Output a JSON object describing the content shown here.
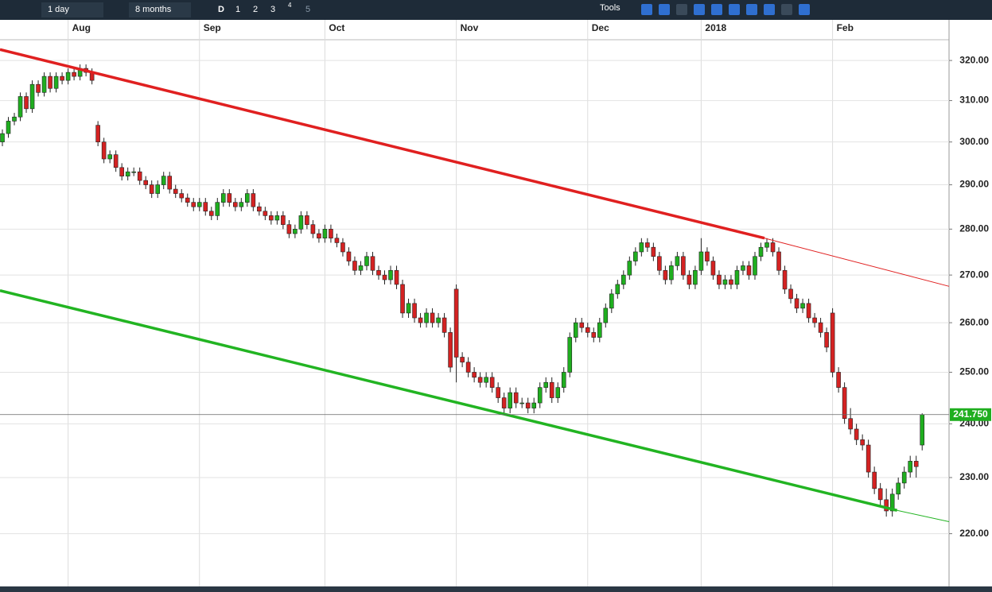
{
  "toolbar": {
    "interval": "1 day",
    "range": "8 months",
    "buttons": [
      "D",
      "1",
      "2",
      "3",
      "4",
      "5"
    ],
    "tools": "Tools"
  },
  "chart_data": {
    "type": "candlestick",
    "log_scale": true,
    "grid": true,
    "up_color": "#1fae1f",
    "down_color": "#d42222",
    "xlim": [
      -0.4,
      158.5
    ],
    "ylim": [
      211,
      325.3
    ],
    "xticks": [
      {
        "value": 11,
        "label": "Aug"
      },
      {
        "value": 33,
        "label": "Sep"
      },
      {
        "value": 54,
        "label": "Oct"
      },
      {
        "value": 76,
        "label": "Nov"
      },
      {
        "value": 98,
        "label": "Dec"
      },
      {
        "value": 117,
        "label": "2018"
      },
      {
        "value": 139,
        "label": "Feb"
      }
    ],
    "yticks": [
      {
        "value": 320,
        "label": "320.00"
      },
      {
        "value": 310,
        "label": "310.00"
      },
      {
        "value": 300,
        "label": "300.00"
      },
      {
        "value": 290,
        "label": "290.00"
      },
      {
        "value": 280,
        "label": "280.00"
      },
      {
        "value": 270,
        "label": "270.00"
      },
      {
        "value": 260,
        "label": "260.00"
      },
      {
        "value": 250,
        "label": "250.00"
      },
      {
        "value": 240,
        "label": "240.00"
      },
      {
        "value": 230,
        "label": "230.00"
      },
      {
        "value": 220,
        "label": "220.00"
      }
    ],
    "last_price": {
      "value": 241.75,
      "label": "241.750",
      "color": "#1fae1f"
    },
    "trendlines": [
      {
        "color": "#e02020",
        "x": [
          -0.4,
          127.6,
          158.5
        ],
        "y": [
          322.8,
          278.0,
          267.6
        ]
      },
      {
        "color": "#22b422",
        "x": [
          -0.4,
          149.8,
          158.5
        ],
        "y": [
          266.7,
          224.1,
          222.1
        ]
      }
    ],
    "candles": [
      [
        300,
        303,
        299,
        302
      ],
      [
        302,
        306,
        301,
        305
      ],
      [
        305,
        307,
        304,
        306
      ],
      [
        306,
        312,
        305,
        311
      ],
      [
        311,
        312,
        307,
        308
      ],
      [
        308,
        315,
        307,
        314
      ],
      [
        314,
        315,
        311,
        312
      ],
      [
        312,
        317,
        311,
        316
      ],
      [
        316,
        317,
        312,
        313
      ],
      [
        313,
        317,
        312,
        316
      ],
      [
        316,
        317,
        314,
        315
      ],
      [
        315,
        318,
        314,
        317
      ],
      [
        317,
        318,
        315,
        316
      ],
      [
        316,
        319,
        315,
        318
      ],
      [
        318,
        319,
        316,
        317
      ],
      [
        317,
        318,
        314,
        315
      ],
      [
        304,
        305,
        299,
        300
      ],
      [
        300,
        301,
        295,
        296
      ],
      [
        296,
        298,
        295,
        297
      ],
      [
        297,
        298,
        293,
        294
      ],
      [
        294,
        295,
        291,
        292
      ],
      [
        292,
        294,
        291,
        293
      ],
      [
        293,
        294,
        292,
        293
      ],
      [
        293,
        294,
        290,
        291
      ],
      [
        291,
        292,
        289,
        290
      ],
      [
        290,
        291,
        287,
        288
      ],
      [
        288,
        291,
        287,
        290
      ],
      [
        290,
        293,
        289,
        292
      ],
      [
        292,
        293,
        288,
        289
      ],
      [
        289,
        290,
        287,
        288
      ],
      [
        288,
        289,
        286,
        287
      ],
      [
        287,
        288,
        285,
        286
      ],
      [
        286,
        287,
        284,
        285
      ],
      [
        285,
        287,
        284,
        286
      ],
      [
        286,
        287,
        283,
        284
      ],
      [
        284,
        285,
        282,
        283
      ],
      [
        283,
        287,
        282,
        286
      ],
      [
        286,
        289,
        285,
        288
      ],
      [
        288,
        289,
        285,
        286
      ],
      [
        286,
        287,
        284,
        285
      ],
      [
        285,
        287,
        284,
        286
      ],
      [
        286,
        289,
        285,
        288
      ],
      [
        288,
        289,
        284,
        285
      ],
      [
        285,
        286,
        283,
        284
      ],
      [
        284,
        285,
        282,
        283
      ],
      [
        283,
        284,
        281,
        282
      ],
      [
        282,
        284,
        281,
        283
      ],
      [
        283,
        284,
        280,
        281
      ],
      [
        281,
        282,
        278,
        279
      ],
      [
        279,
        281,
        278,
        280
      ],
      [
        280,
        284,
        279,
        283
      ],
      [
        283,
        284,
        280,
        281
      ],
      [
        281,
        282,
        278,
        279
      ],
      [
        279,
        280,
        277,
        278
      ],
      [
        278,
        281,
        277,
        280
      ],
      [
        280,
        281,
        277,
        278
      ],
      [
        278,
        279,
        276,
        277
      ],
      [
        277,
        278,
        274,
        275
      ],
      [
        275,
        276,
        272,
        273
      ],
      [
        273,
        274,
        270,
        271
      ],
      [
        271,
        273,
        270,
        272
      ],
      [
        272,
        275,
        271,
        274
      ],
      [
        274,
        275,
        270,
        271
      ],
      [
        271,
        272,
        269,
        270
      ],
      [
        270,
        271,
        268,
        269
      ],
      [
        269,
        272,
        268,
        271
      ],
      [
        271,
        272,
        267,
        268
      ],
      [
        268,
        269,
        261,
        262
      ],
      [
        262,
        265,
        261,
        264
      ],
      [
        264,
        265,
        260,
        261
      ],
      [
        261,
        262,
        259,
        260
      ],
      [
        260,
        263,
        259,
        262
      ],
      [
        262,
        263,
        259,
        260
      ],
      [
        260,
        262,
        259,
        261
      ],
      [
        261,
        262,
        257,
        258
      ],
      [
        258,
        259,
        250,
        251
      ],
      [
        267,
        268,
        248,
        253
      ],
      [
        253,
        254,
        251,
        252
      ],
      [
        252,
        253,
        249,
        250
      ],
      [
        250,
        251,
        248,
        249
      ],
      [
        249,
        250,
        247,
        248
      ],
      [
        248,
        250,
        247,
        249
      ],
      [
        249,
        250,
        246,
        247
      ],
      [
        247,
        248,
        244,
        245
      ],
      [
        245,
        246,
        242,
        243
      ],
      [
        243,
        247,
        242,
        246
      ],
      [
        246,
        247,
        243,
        244
      ],
      [
        244,
        245,
        243,
        244
      ],
      [
        244,
        245,
        242,
        243
      ],
      [
        243,
        245,
        242,
        244
      ],
      [
        244,
        248,
        243,
        247
      ],
      [
        247,
        249,
        246,
        248
      ],
      [
        248,
        249,
        244,
        245
      ],
      [
        245,
        248,
        244,
        247
      ],
      [
        247,
        251,
        246,
        250
      ],
      [
        250,
        258,
        249,
        257
      ],
      [
        257,
        261,
        256,
        260
      ],
      [
        260,
        261,
        258,
        259
      ],
      [
        259,
        260,
        257,
        258
      ],
      [
        258,
        259,
        256,
        257
      ],
      [
        257,
        261,
        256,
        260
      ],
      [
        260,
        264,
        259,
        263
      ],
      [
        263,
        267,
        262,
        266
      ],
      [
        266,
        269,
        265,
        268
      ],
      [
        268,
        271,
        267,
        270
      ],
      [
        270,
        274,
        269,
        273
      ],
      [
        273,
        276,
        272,
        275
      ],
      [
        275,
        278,
        274,
        277
      ],
      [
        277,
        278,
        275,
        276
      ],
      [
        276,
        277,
        273,
        274
      ],
      [
        274,
        275,
        270,
        271
      ],
      [
        271,
        272,
        268,
        269
      ],
      [
        269,
        273,
        268,
        272
      ],
      [
        272,
        275,
        271,
        274
      ],
      [
        274,
        275,
        269,
        270
      ],
      [
        270,
        271,
        267,
        268
      ],
      [
        268,
        272,
        267,
        271
      ],
      [
        271,
        278,
        270,
        275
      ],
      [
        275,
        276,
        272,
        273
      ],
      [
        273,
        274,
        269,
        270
      ],
      [
        270,
        271,
        267,
        268
      ],
      [
        268,
        270,
        267,
        269
      ],
      [
        269,
        270,
        267,
        268
      ],
      [
        268,
        272,
        267,
        271
      ],
      [
        271,
        273,
        270,
        272
      ],
      [
        272,
        273,
        269,
        270
      ],
      [
        270,
        275,
        269,
        274
      ],
      [
        274,
        277,
        273,
        276
      ],
      [
        276,
        278,
        275,
        277
      ],
      [
        277,
        278,
        274,
        275
      ],
      [
        275,
        276,
        270,
        271
      ],
      [
        271,
        272,
        266,
        267
      ],
      [
        267,
        268,
        264,
        265
      ],
      [
        265,
        266,
        262,
        263
      ],
      [
        263,
        265,
        262,
        264
      ],
      [
        264,
        265,
        260,
        261
      ],
      [
        261,
        262,
        259,
        260
      ],
      [
        260,
        261,
        257,
        258
      ],
      [
        258,
        259,
        254,
        255
      ],
      [
        262,
        263,
        249,
        250
      ],
      [
        250,
        251,
        246,
        247
      ],
      [
        247,
        248,
        240,
        241
      ],
      [
        241,
        243,
        238,
        239
      ],
      [
        239,
        240,
        236,
        237
      ],
      [
        237,
        238,
        235,
        236
      ],
      [
        236,
        237,
        230,
        231
      ],
      [
        231,
        232,
        227,
        228
      ],
      [
        228,
        229,
        225,
        226
      ],
      [
        226,
        228,
        223,
        224
      ],
      [
        224,
        228,
        223,
        227
      ],
      [
        227,
        230,
        226,
        229
      ],
      [
        229,
        232,
        228,
        231
      ],
      [
        231,
        234,
        230,
        233
      ],
      [
        233,
        234,
        230,
        232
      ],
      [
        236,
        242,
        235,
        241.75
      ]
    ]
  }
}
